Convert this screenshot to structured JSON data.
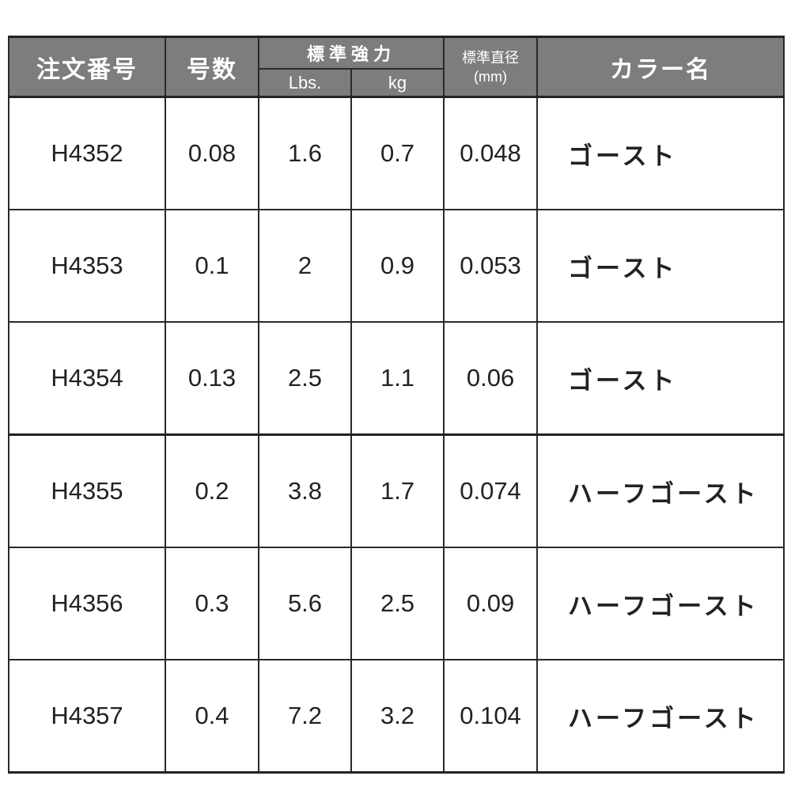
{
  "header": {
    "order_no": "注文番号",
    "size": "号数",
    "strength": "標準強力",
    "lbs": "Lbs.",
    "kg": "kg",
    "diameter": "標準直径",
    "diameter_unit": "(mm)",
    "color": "カラー名"
  },
  "rows": [
    {
      "order_no": "H4352",
      "size": "0.08",
      "lbs": "1.6",
      "kg": "0.7",
      "diameter": "0.048",
      "color": "ゴースト"
    },
    {
      "order_no": "H4353",
      "size": "0.1",
      "lbs": "2",
      "kg": "0.9",
      "diameter": "0.053",
      "color": "ゴースト"
    },
    {
      "order_no": "H4354",
      "size": "0.13",
      "lbs": "2.5",
      "kg": "1.1",
      "diameter": "0.06",
      "color": "ゴースト"
    },
    {
      "order_no": "H4355",
      "size": "0.2",
      "lbs": "3.8",
      "kg": "1.7",
      "diameter": "0.074",
      "color": "ハーフゴースト"
    },
    {
      "order_no": "H4356",
      "size": "0.3",
      "lbs": "5.6",
      "kg": "2.5",
      "diameter": "0.09",
      "color": "ハーフゴースト"
    },
    {
      "order_no": "H4357",
      "size": "0.4",
      "lbs": "7.2",
      "kg": "3.2",
      "diameter": "0.104",
      "color": "ハーフゴースト"
    }
  ],
  "colors": {
    "header_bg": "#7d7d7d",
    "border": "#222222"
  }
}
